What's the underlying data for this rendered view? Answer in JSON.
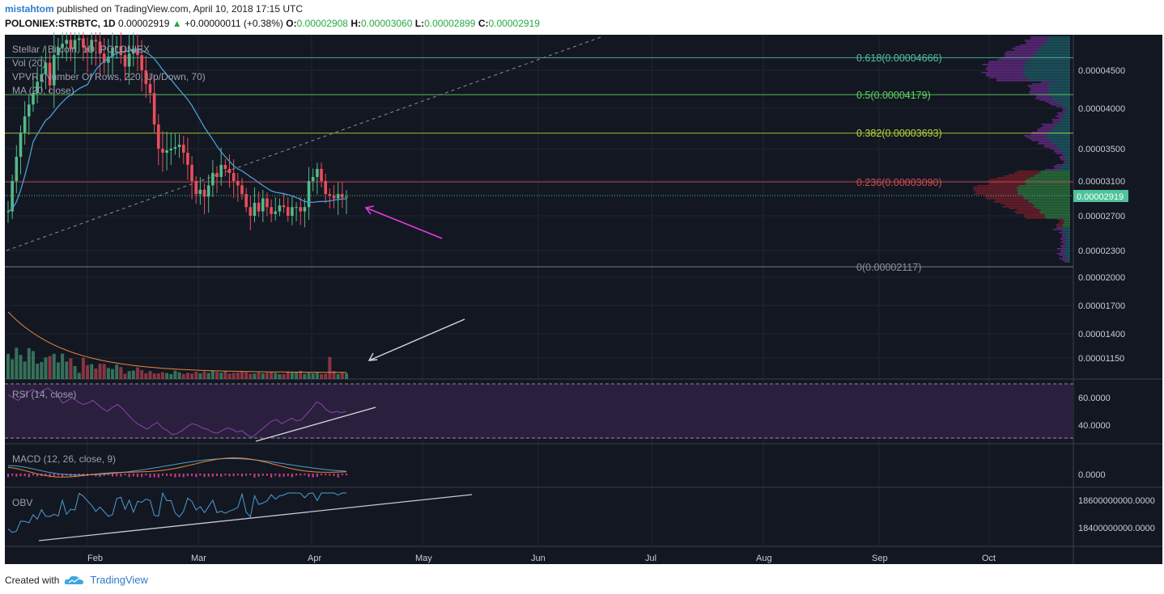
{
  "header": {
    "author": "mistahtom",
    "published_text": "published on TradingView.com, April 10, 2018 17:15 UTC",
    "symbol": "POLONIEX:STRBTC, 1D",
    "last": "0.00002919",
    "change": "+0.00000011 (+0.38%)",
    "o_label": "O:",
    "o_value": "0.00002908",
    "h_label": "H:",
    "h_value": "0.00003060",
    "l_label": "L:",
    "l_value": "0.00002899",
    "c_label": "C:",
    "c_value": "0.00002919"
  },
  "legend": {
    "title": "Stellar / Bitcoin, 1D, POLONIEX",
    "vol": "Vol (20)",
    "vpvr": "VPVR (Number Of Rows, 220, Up/Down, 70)",
    "ma": "MA (20, close)"
  },
  "fib_labels": [
    {
      "text": "0.618(0.00004666)",
      "color": "#4fc29a"
    },
    {
      "text": "0.5(0.00004179)",
      "color": "#5fd35f"
    },
    {
      "text": "0.382(0.00003693)",
      "color": "#b8d63a"
    },
    {
      "text": "0.236(0.00003090)",
      "color": "#d24c4c"
    },
    {
      "text": "0(0.00002117)",
      "color": "#8a8f9a"
    }
  ],
  "price_axis": [
    "0.00004500",
    "0.00004000",
    "0.00003500",
    "0.00003100",
    "0.00002700",
    "0.00002300",
    "0.00002000",
    "0.00001700",
    "0.00001400",
    "0.00001150"
  ],
  "last_price_tag": "0.00002919",
  "rsi": {
    "label": "RSI (14, close)",
    "axis": [
      "60.0000",
      "40.0000"
    ]
  },
  "macd": {
    "label": "MACD (12, 26, close, 9)",
    "axis": [
      "0.0000"
    ]
  },
  "obv": {
    "label": "OBV",
    "axis": [
      "18600000000.0000",
      "18400000000.0000"
    ]
  },
  "time_axis": [
    "Feb",
    "Mar",
    "Apr",
    "May",
    "Jun",
    "Jul",
    "Aug",
    "Sep",
    "Oct"
  ],
  "footer": {
    "created": "Created with",
    "brand": "TradingView"
  },
  "colors": {
    "background": "#131722",
    "bull": "#53b987",
    "bear": "#eb4d5c",
    "ma": "#4a9fd0",
    "rsi": "#8e44ad",
    "arrow_price": "#e43be0",
    "arrow_volume": "#d8d8e0",
    "trendline": "#c8c8d0"
  },
  "chart_data": {
    "type": "candlestick",
    "symbol": "POLONIEX:STRBTC",
    "interval": "1D",
    "last_close": 2.919e-05,
    "ohlc_last": {
      "open": 2.908e-05,
      "high": 3.06e-05,
      "low": 2.899e-05,
      "close": 2.919e-05
    },
    "fib_retracement": [
      {
        "level": 0.618,
        "price": 4.666e-05
      },
      {
        "level": 0.5,
        "price": 4.179e-05
      },
      {
        "level": 0.382,
        "price": 3.693e-05
      },
      {
        "level": 0.236,
        "price": 3.09e-05
      },
      {
        "level": 0,
        "price": 2.117e-05
      }
    ],
    "y_ticks": [
      4.5e-05,
      4e-05,
      3.5e-05,
      3.1e-05,
      2.7e-05,
      2.3e-05,
      2e-05,
      1.7e-05,
      1.4e-05,
      1.15e-05
    ],
    "x_ticks": [
      "Feb",
      "Mar",
      "Apr",
      "May",
      "Jun",
      "Jul",
      "Aug",
      "Sep",
      "Oct"
    ],
    "candles_close": [
      2.75e-05,
      3.1e-05,
      3.4e-05,
      3.7e-05,
      3.9e-05,
      4.05e-05,
      4.2e-05,
      4.35e-05,
      4.45e-05,
      4.6e-05,
      4.3e-05,
      4.7e-05,
      4.8e-05,
      4.85e-05,
      4.9e-05,
      4.78e-05,
      4.9e-05,
      4.92e-05,
      4.8e-05,
      4.75e-05,
      4.9e-05,
      4.88e-05,
      4.72e-05,
      4.6e-05,
      4.68e-05,
      4.8e-05,
      4.82e-05,
      4.7e-05,
      4.55e-05,
      4.72e-05,
      4.78e-05,
      4.7e-05,
      4.5e-05,
      4.32e-05,
      4.2e-05,
      3.8e-05,
      3.5e-05,
      3.45e-05,
      3.48e-05,
      3.5e-05,
      3.52e-05,
      3.55e-05,
      3.45e-05,
      3.3e-05,
      3.1e-05,
      2.95e-05,
      3e-05,
      2.92e-05,
      3.05e-05,
      3.2e-05,
      3.15e-05,
      3.3e-05,
      3.25e-05,
      3.2e-05,
      3.1e-05,
      3.05e-05,
      2.95e-05,
      2.8e-05,
      2.7e-05,
      2.85e-05,
      2.75e-05,
      2.9e-05,
      2.8e-05,
      2.72e-05,
      2.75e-05,
      2.82e-05,
      2.8e-05,
      2.7e-05,
      2.8e-05,
      2.8e-05,
      2.75e-05,
      2.8e-05,
      3.1e-05,
      3.15e-05,
      3.25e-05,
      3.1e-05,
      2.95e-05,
      2.93e-05,
      2.9e-05,
      2.95e-05,
      2.91e-05,
      2.92e-05
    ],
    "ma20_start": 2.75e-05,
    "volume_ma_note": "",
    "rsi_range": [
      30,
      70
    ],
    "rsi_values": [
      62,
      60,
      58,
      61,
      64,
      66,
      63,
      65,
      67,
      64,
      61,
      56,
      58,
      60,
      57,
      55,
      56,
      58,
      55,
      52,
      50,
      53,
      55,
      52,
      48,
      44,
      41,
      39,
      37,
      40,
      42,
      38,
      36,
      33,
      34,
      36,
      39,
      41,
      40,
      38,
      37,
      35,
      34,
      36,
      38,
      37,
      35,
      36,
      33,
      31,
      34,
      37,
      40,
      43,
      44,
      41,
      43,
      45,
      43,
      44,
      48,
      52,
      57,
      55,
      51,
      49,
      50,
      49,
      50
    ]
  }
}
